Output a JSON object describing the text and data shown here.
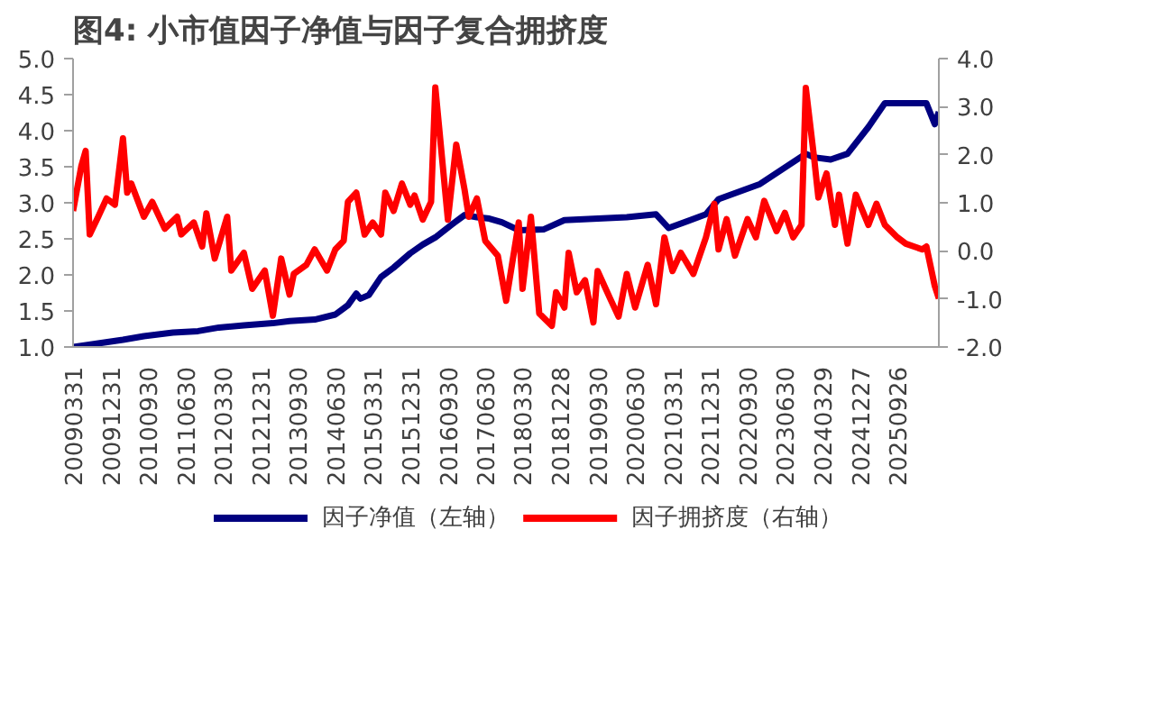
{
  "chart_data": {
    "type": "line",
    "title": "图4:  小市值因子净值与因子复合拥挤度",
    "xlim": [
      "2009-03",
      "2026-07"
    ],
    "xticks": [
      {
        "value": "2009-03",
        "label": "20090331"
      },
      {
        "value": "2009-12",
        "label": "20091231"
      },
      {
        "value": "2010-09",
        "label": "20100930"
      },
      {
        "value": "2011-06",
        "label": "20110630"
      },
      {
        "value": "2012-03",
        "label": "20120330"
      },
      {
        "value": "2012-12",
        "label": "20121231"
      },
      {
        "value": "2013-09",
        "label": "20130930"
      },
      {
        "value": "2014-06",
        "label": "20140630"
      },
      {
        "value": "2015-03",
        "label": "20150331"
      },
      {
        "value": "2015-12",
        "label": "20151231"
      },
      {
        "value": "2016-09",
        "label": "20160930"
      },
      {
        "value": "2017-06",
        "label": "20170630"
      },
      {
        "value": "2018-03",
        "label": "20180330"
      },
      {
        "value": "2018-12",
        "label": "20181228"
      },
      {
        "value": "2019-09",
        "label": "20190930"
      },
      {
        "value": "2020-06",
        "label": "20200630"
      },
      {
        "value": "2021-03",
        "label": "20210331"
      },
      {
        "value": "2021-12",
        "label": "20211231"
      },
      {
        "value": "2022-09",
        "label": "20220930"
      },
      {
        "value": "2023-06",
        "label": "20230630"
      },
      {
        "value": "2024-03",
        "label": "20240329"
      },
      {
        "value": "2024-12",
        "label": "20241227"
      },
      {
        "value": "2025-09",
        "label": "20250926"
      }
    ],
    "ylim": [
      1,
      5
    ],
    "yticks": [
      {
        "value": 1,
        "label": "1.0"
      },
      {
        "value": 1.5,
        "label": "1.5"
      },
      {
        "value": 2,
        "label": "2.0"
      },
      {
        "value": 2.5,
        "label": "2.5"
      },
      {
        "value": 3,
        "label": "3.0"
      },
      {
        "value": 3.5,
        "label": "3.5"
      },
      {
        "value": 4,
        "label": "4.0"
      },
      {
        "value": 4.5,
        "label": "4.5"
      },
      {
        "value": 5,
        "label": "5.0"
      }
    ],
    "y2lim": [
      -2,
      4
    ],
    "y2ticks": [
      {
        "value": -2,
        "label": "-2.0"
      },
      {
        "value": -1,
        "label": "-1.0"
      },
      {
        "value": 0,
        "label": "0.0"
      },
      {
        "value": 1,
        "label": "1.0"
      },
      {
        "value": 2,
        "label": "2.0"
      },
      {
        "value": 3,
        "label": "3.0"
      },
      {
        "value": 4,
        "label": "4.0"
      }
    ],
    "grid": false,
    "legend": "bottom",
    "line_style": "solid",
    "series": [
      {
        "name": "因子净值（左轴）",
        "color": "#000080",
        "x": [
          "2009-03",
          "2009-09",
          "2010-03",
          "2010-08",
          "2011-03",
          "2011-09",
          "2012-02",
          "2012-08",
          "2013-03",
          "2013-07",
          "2014-01",
          "2014-06",
          "2014-09",
          "2014-11",
          "2014-12",
          "2015-02",
          "2015-05",
          "2015-08",
          "2015-12",
          "2016-03",
          "2016-06",
          "2016-10",
          "2017-01",
          "2017-04",
          "2017-07",
          "2017-10",
          "2018-02",
          "2018-08",
          "2019-01",
          "2020-04",
          "2020-11",
          "2021-02",
          "2021-11",
          "2022-02",
          "2022-12",
          "2023-11",
          "2024-01",
          "2024-05",
          "2024-09",
          "2025-02",
          "2025-06",
          "2025-10",
          "2026-04",
          "2026-06",
          "2026-07"
        ],
        "values": [
          1.0,
          1.05,
          1.1,
          1.15,
          1.2,
          1.22,
          1.27,
          1.3,
          1.33,
          1.36,
          1.38,
          1.45,
          1.58,
          1.74,
          1.67,
          1.72,
          1.97,
          2.1,
          2.3,
          2.42,
          2.52,
          2.7,
          2.83,
          2.8,
          2.78,
          2.73,
          2.62,
          2.63,
          2.76,
          2.8,
          2.84,
          2.65,
          2.84,
          3.05,
          3.26,
          3.68,
          3.63,
          3.6,
          3.68,
          4.05,
          4.38,
          4.38,
          4.38,
          4.09,
          4.26
        ]
      },
      {
        "name": "因子拥挤度（右轴）",
        "color": "#ff0000",
        "axis": "y2",
        "x": [
          "2009-03",
          "2009-05",
          "2009-06",
          "2009-07",
          "2009-09",
          "2009-11",
          "2010-01",
          "2010-03",
          "2010-04",
          "2010-05",
          "2010-08",
          "2010-10",
          "2011-01",
          "2011-04",
          "2011-05",
          "2011-08",
          "2011-10",
          "2011-11",
          "2012-01",
          "2012-04",
          "2012-05",
          "2012-08",
          "2012-10",
          "2013-01",
          "2013-03",
          "2013-05",
          "2013-07",
          "2013-08",
          "2013-11",
          "2014-01",
          "2014-04",
          "2014-06",
          "2014-08",
          "2014-09",
          "2014-11",
          "2015-01",
          "2015-03",
          "2015-05",
          "2015-06",
          "2015-08",
          "2015-10",
          "2015-12",
          "2016-01",
          "2016-03",
          "2016-05",
          "2016-06",
          "2016-09",
          "2016-11",
          "2017-01",
          "2017-02",
          "2017-04",
          "2017-06",
          "2017-09",
          "2017-11",
          "2018-02",
          "2018-03",
          "2018-05",
          "2018-07",
          "2018-10",
          "2018-11",
          "2019-01",
          "2019-02",
          "2019-04",
          "2019-06",
          "2019-08",
          "2019-09",
          "2019-12",
          "2020-02",
          "2020-04",
          "2020-06",
          "2020-09",
          "2020-11",
          "2021-01",
          "2021-03",
          "2021-05",
          "2021-08",
          "2021-11",
          "2022-01",
          "2022-02",
          "2022-04",
          "2022-06",
          "2022-09",
          "2022-11",
          "2023-01",
          "2023-04",
          "2023-06",
          "2023-08",
          "2023-10",
          "2023-11",
          "2024-01",
          "2024-02",
          "2024-04",
          "2024-06",
          "2024-07",
          "2024-09",
          "2024-11",
          "2025-02",
          "2025-04",
          "2025-06",
          "2025-09",
          "2025-11",
          "2026-03",
          "2026-04",
          "2026-06",
          "2026-07"
        ],
        "values": [
          0.83,
          1.77,
          2.08,
          0.34,
          0.71,
          1.09,
          0.96,
          2.34,
          1.21,
          1.4,
          0.71,
          1.02,
          0.46,
          0.71,
          0.34,
          0.59,
          0.09,
          0.78,
          -0.16,
          0.71,
          -0.41,
          -0.04,
          -0.79,
          -0.41,
          -1.35,
          -0.16,
          -0.91,
          -0.48,
          -0.29,
          0.03,
          -0.41,
          0.03,
          0.21,
          1.02,
          1.21,
          0.34,
          0.59,
          0.34,
          1.21,
          0.83,
          1.4,
          0.96,
          1.15,
          0.65,
          1.02,
          3.4,
          0.65,
          2.21,
          1.27,
          0.71,
          1.09,
          0.21,
          -0.1,
          -1.04,
          0.59,
          -0.79,
          0.71,
          -1.3,
          -1.56,
          -0.86,
          -1.18,
          -0.04,
          -0.86,
          -0.61,
          -1.49,
          -0.42,
          -0.99,
          -1.37,
          -0.48,
          -1.18,
          -0.29,
          -1.11,
          0.28,
          -0.42,
          -0.04,
          -0.48,
          0.28,
          0.98,
          0.03,
          0.66,
          -0.1,
          0.66,
          0.28,
          1.04,
          0.41,
          0.79,
          0.28,
          0.54,
          3.39,
          1.93,
          1.11,
          1.61,
          0.54,
          1.17,
          0.15,
          1.17,
          0.54,
          0.98,
          0.54,
          0.28,
          0.15,
          0.03,
          0.09,
          -0.73,
          -0.99
        ]
      }
    ]
  }
}
